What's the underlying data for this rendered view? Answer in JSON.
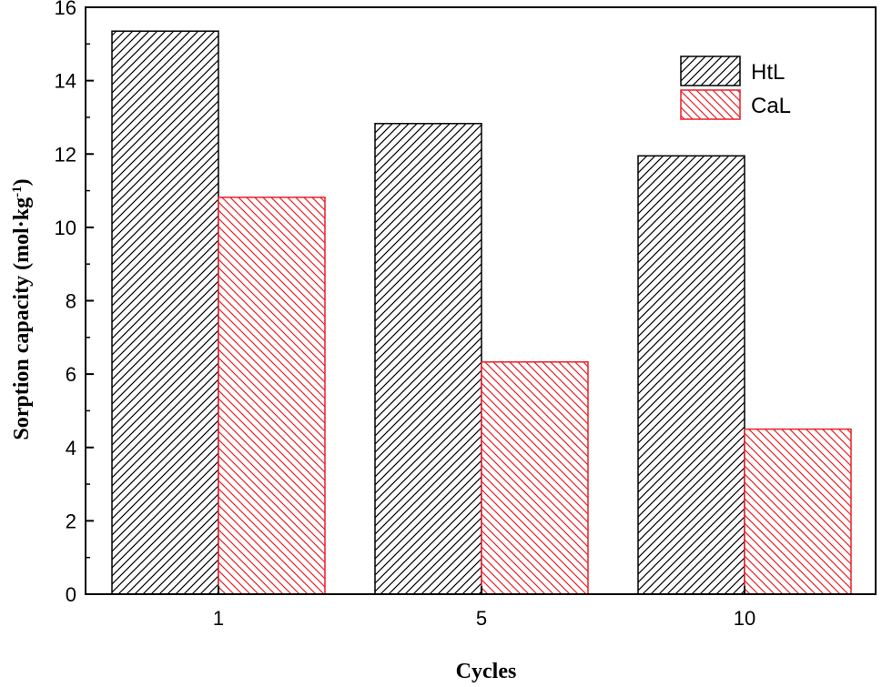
{
  "chart_data": {
    "type": "bar",
    "categories": [
      "1",
      "5",
      "10"
    ],
    "series": [
      {
        "name": "HtL",
        "values": [
          15.35,
          12.83,
          11.95
        ],
        "color": "#000000",
        "hatch": "forward-diagonal"
      },
      {
        "name": "CaL",
        "values": [
          10.82,
          6.33,
          4.5
        ],
        "color": "#e8202a",
        "hatch": "backward-diagonal"
      }
    ],
    "xlabel": "Cycles",
    "ylabel": "Sorption capacity (mol·kg",
    "ylabel_superscript": "-1",
    "ylabel_suffix": ")",
    "ylim": [
      0,
      16
    ],
    "yticks": [
      "0",
      "2",
      "4",
      "6",
      "8",
      "10",
      "12",
      "14",
      "16"
    ],
    "grid": false,
    "legend_position": "top-right"
  }
}
